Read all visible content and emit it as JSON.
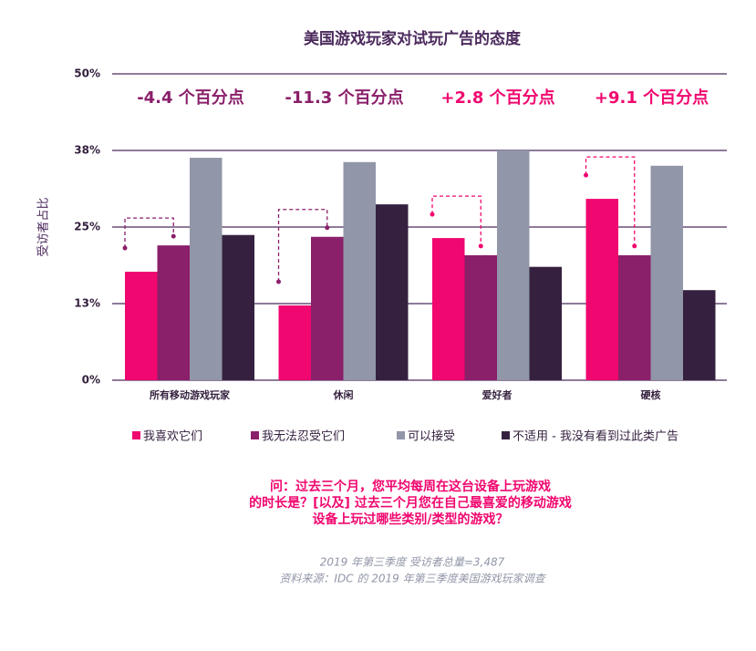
{
  "chart_data": {
    "type": "bar",
    "title": "美国游戏玩家对试玩广告的态度",
    "y_label": "受访者占比",
    "categories": [
      "所有移动游戏玩家",
      "休闲",
      "爱好者",
      "硬核"
    ],
    "series": [
      {
        "name": "我喜欢它们",
        "color": "#f0076f",
        "values": [
          17.7,
          12.2,
          23.2,
          29.6
        ]
      },
      {
        "name": "我无法忍受它们",
        "color": "#8a1f6a",
        "values": [
          22.0,
          23.4,
          20.4,
          20.4
        ]
      },
      {
        "name": "可以接受",
        "color": "#9196a8",
        "values": [
          36.3,
          35.6,
          37.5,
          35.0
        ]
      },
      {
        "name": "不适用 - 我没有看到过此类广告",
        "color": "#35213f",
        "values": [
          23.7,
          28.7,
          18.5,
          14.7
        ]
      }
    ],
    "ylim": [
      0,
      50
    ],
    "yticks": [
      {
        "value": 0,
        "label": "0%"
      },
      {
        "value": 12.5,
        "label": "13%"
      },
      {
        "value": 25,
        "label": "25%"
      },
      {
        "value": 37.5,
        "label": "38%"
      },
      {
        "value": 50,
        "label": "50%"
      }
    ],
    "grid": true,
    "annotations": [
      {
        "text": "-4.4 个百分点",
        "color": "#8a1f6a"
      },
      {
        "text": "-11.3 个百分点",
        "color": "#8a1f6a"
      },
      {
        "text": "+2.8 个百分点",
        "color": "#f0076f"
      },
      {
        "text": "+9.1 个百分点",
        "color": "#f0076f"
      }
    ],
    "question": [
      "问：过去三个月，您平均每周在这台设备上玩游戏",
      "的时长是？[以及] 过去三个月您在自己最喜爱的移动游戏",
      "设备上玩过哪些类别/类型的游戏？"
    ],
    "footnote": [
      "2019 年第三季度 受访者总量=3,487",
      "资料来源：IDC 的 2019 年第三季度美国游戏玩家调查"
    ]
  }
}
